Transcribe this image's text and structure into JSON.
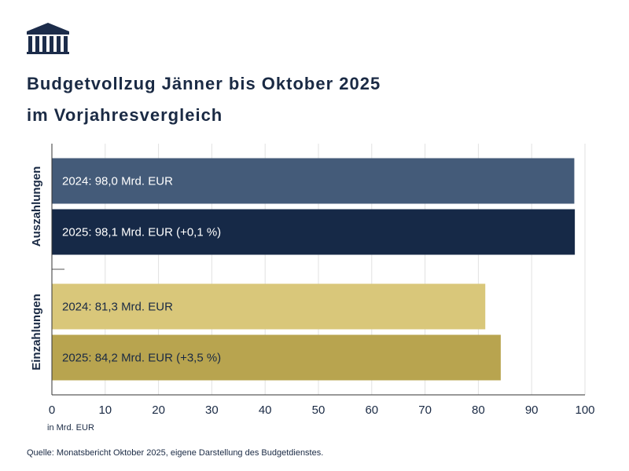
{
  "chart_data": {
    "type": "bar",
    "orientation": "horizontal",
    "title_lines": [
      "Budgetvollzug Jänner bis Oktober 2025",
      "im Vorjahresvergleich"
    ],
    "groups": [
      {
        "name": "Auszahlungen",
        "values": [
          98.0,
          98.1
        ],
        "value_labels": [
          "2024: 98,0 Mrd. EUR",
          "2025: 98,1 Mrd. EUR (+0,1 %)"
        ],
        "colors": [
          "#445b79",
          "#162947"
        ]
      },
      {
        "name": "Einzahlungen",
        "values": [
          81.3,
          84.2
        ],
        "value_labels": [
          "2024: 81,3 Mrd. EUR",
          "2025: 84,2 Mrd. EUR (+3,5 %)"
        ],
        "colors": [
          "#d9c77a",
          "#b8a44f"
        ]
      }
    ],
    "xlim": [
      0,
      100
    ],
    "xticks": [
      0,
      10,
      20,
      30,
      40,
      50,
      60,
      70,
      80,
      90,
      100
    ],
    "xlabel": "in Mrd. EUR",
    "grid": true,
    "source": "Quelle: Monatsbericht Oktober 2025, eigene Darstellung des Budgetdienstes."
  }
}
